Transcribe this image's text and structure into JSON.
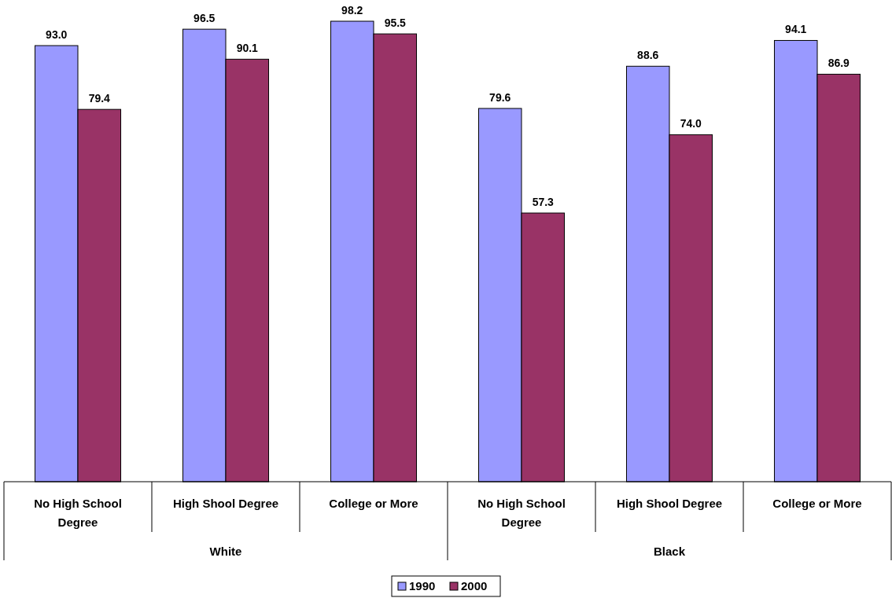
{
  "chart_data": {
    "type": "bar",
    "categories": [
      "No High School Degree",
      "High Shool Degree",
      "College or More",
      "No High School Degree",
      "High Shool Degree",
      "College or More"
    ],
    "annotations": [
      "White",
      "Black"
    ],
    "series": [
      {
        "name": "1990",
        "color": "#9999ff",
        "values": [
          93.0,
          96.5,
          98.2,
          79.6,
          88.6,
          94.1
        ],
        "value_labels": [
          "93.0",
          "96.5",
          "98.2",
          "79.6",
          "88.6",
          "94.1"
        ]
      },
      {
        "name": "2000",
        "color": "#993366",
        "values": [
          79.4,
          90.1,
          95.5,
          57.3,
          74.0,
          86.9
        ],
        "value_labels": [
          "79.4",
          "90.1",
          "95.5",
          "57.3",
          "74.0",
          "86.9"
        ]
      }
    ],
    "tick_labels": "x",
    "legend": "bottom"
  }
}
